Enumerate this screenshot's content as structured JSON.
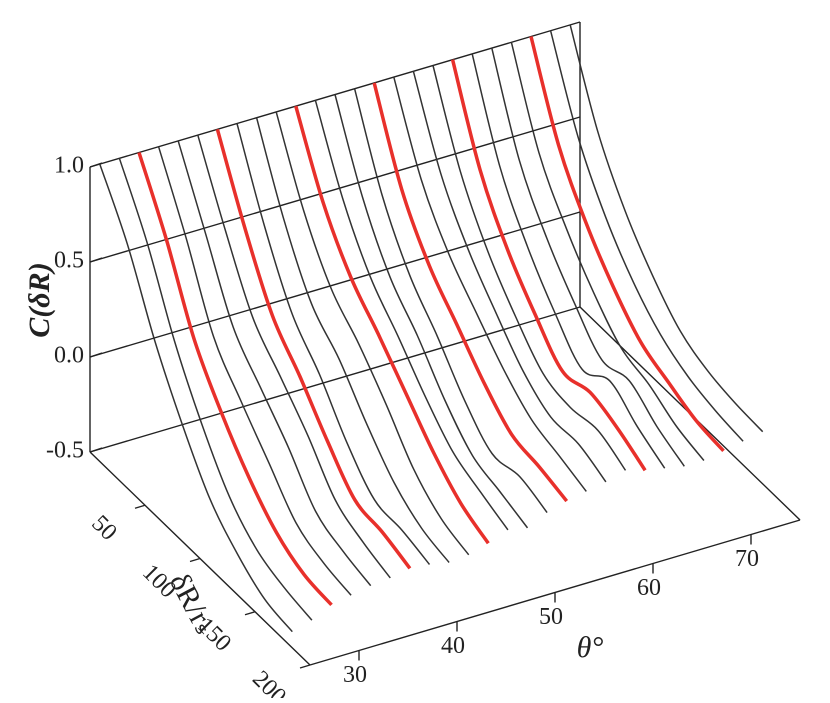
{
  "chart_data": {
    "type": "waterfall",
    "y_label": "C(δR)",
    "x_label": "δR/rₛ",
    "z_label": "θ°",
    "x": [
      0,
      25,
      50,
      75,
      100,
      125,
      150,
      175
    ],
    "xlim": [
      0,
      200
    ],
    "xticks": [
      50,
      100,
      150,
      200
    ],
    "zlim": [
      25,
      75
    ],
    "zticks": [
      30,
      40,
      50,
      60,
      70
    ],
    "ylim": [
      -0.5,
      1.0
    ],
    "yticks": [
      {
        "value": -0.5,
        "label": "-0.5"
      },
      {
        "value": 0,
        "label": "0.0"
      },
      {
        "value": 0.5,
        "label": "0.5"
      },
      {
        "value": 1.0,
        "label": "1.0"
      }
    ],
    "series": [
      {
        "theta": 26,
        "color": "#333333",
        "values": [
          1,
          0.72,
          0.35,
          0.05,
          -0.2,
          -0.35,
          -0.45,
          -0.48
        ]
      },
      {
        "theta": 28,
        "color": "#333333",
        "values": [
          1,
          0.7,
          0.32,
          0.02,
          -0.22,
          -0.36,
          -0.42,
          -0.45
        ]
      },
      {
        "theta": 30,
        "color": "#e8302b",
        "values": [
          1,
          0.68,
          0.3,
          0.05,
          -0.15,
          -0.3,
          -0.38,
          -0.4
        ]
      },
      {
        "theta": 32,
        "color": "#333333",
        "values": [
          1,
          0.66,
          0.28,
          0.08,
          -0.1,
          -0.28,
          -0.35,
          -0.38
        ]
      },
      {
        "theta": 34,
        "color": "#333333",
        "values": [
          1,
          0.65,
          0.3,
          0.12,
          -0.05,
          -0.25,
          -0.32,
          -0.36
        ]
      },
      {
        "theta": 36,
        "color": "#333333",
        "values": [
          1,
          0.64,
          0.32,
          0.15,
          -0.02,
          -0.22,
          -0.3,
          -0.35
        ]
      },
      {
        "theta": 38,
        "color": "#e8302b",
        "values": [
          1,
          0.62,
          0.3,
          0.12,
          -0.08,
          -0.25,
          -0.28,
          -0.33
        ]
      },
      {
        "theta": 40,
        "color": "#333333",
        "values": [
          1,
          0.6,
          0.28,
          0.1,
          -0.12,
          -0.28,
          -0.3,
          -0.34
        ]
      },
      {
        "theta": 42,
        "color": "#333333",
        "values": [
          1,
          0.6,
          0.3,
          0.15,
          -0.05,
          -0.22,
          -0.32,
          -0.36
        ]
      },
      {
        "theta": 44,
        "color": "#333333",
        "values": [
          1,
          0.62,
          0.35,
          0.2,
          0.02,
          -0.18,
          -0.3,
          -0.35
        ]
      },
      {
        "theta": 46,
        "color": "#e8302b",
        "values": [
          1,
          0.63,
          0.38,
          0.22,
          0.05,
          -0.12,
          -0.25,
          -0.32
        ]
      },
      {
        "theta": 48,
        "color": "#333333",
        "values": [
          1,
          0.62,
          0.35,
          0.18,
          0.0,
          -0.15,
          -0.22,
          -0.28
        ]
      },
      {
        "theta": 50,
        "color": "#333333",
        "values": [
          1,
          0.6,
          0.32,
          0.15,
          -0.05,
          -0.2,
          -0.25,
          -0.3
        ]
      },
      {
        "theta": 52,
        "color": "#333333",
        "values": [
          1,
          0.58,
          0.3,
          0.12,
          -0.08,
          -0.22,
          -0.2,
          -0.25
        ]
      },
      {
        "theta": 54,
        "color": "#e8302b",
        "values": [
          1,
          0.58,
          0.32,
          0.15,
          -0.02,
          -0.15,
          -0.18,
          -0.22
        ]
      },
      {
        "theta": 56,
        "color": "#333333",
        "values": [
          1,
          0.6,
          0.35,
          0.18,
          0.02,
          -0.1,
          -0.15,
          -0.2
        ]
      },
      {
        "theta": 58,
        "color": "#333333",
        "values": [
          1,
          0.6,
          0.34,
          0.15,
          -0.02,
          -0.12,
          -0.12,
          -0.18
        ]
      },
      {
        "theta": 60,
        "color": "#333333",
        "values": [
          1,
          0.58,
          0.3,
          0.1,
          -0.06,
          -0.1,
          -0.08,
          -0.15
        ]
      },
      {
        "theta": 62,
        "color": "#e8302b",
        "values": [
          1,
          0.56,
          0.28,
          0.08,
          -0.08,
          -0.05,
          -0.1,
          -0.18
        ]
      },
      {
        "theta": 64,
        "color": "#333333",
        "values": [
          1,
          0.55,
          0.27,
          0.06,
          -0.1,
          -0.02,
          -0.12,
          -0.2
        ]
      },
      {
        "theta": 66,
        "color": "#333333",
        "values": [
          1,
          0.55,
          0.28,
          0.08,
          -0.08,
          -0.05,
          -0.15,
          -0.22
        ]
      },
      {
        "theta": 68,
        "color": "#333333",
        "values": [
          1,
          0.56,
          0.3,
          0.1,
          -0.05,
          -0.1,
          -0.18,
          -0.22
        ]
      },
      {
        "theta": 70,
        "color": "#e8302b",
        "values": [
          1,
          0.57,
          0.3,
          0.1,
          -0.05,
          -0.12,
          -0.18,
          -0.2
        ]
      },
      {
        "theta": 72,
        "color": "#333333",
        "values": [
          1,
          0.58,
          0.3,
          0.1,
          -0.04,
          -0.12,
          -0.16,
          -0.18
        ]
      },
      {
        "theta": 74,
        "color": "#333333",
        "values": [
          1,
          0.58,
          0.3,
          0.1,
          -0.05,
          -0.12,
          -0.15,
          -0.16
        ]
      }
    ]
  }
}
